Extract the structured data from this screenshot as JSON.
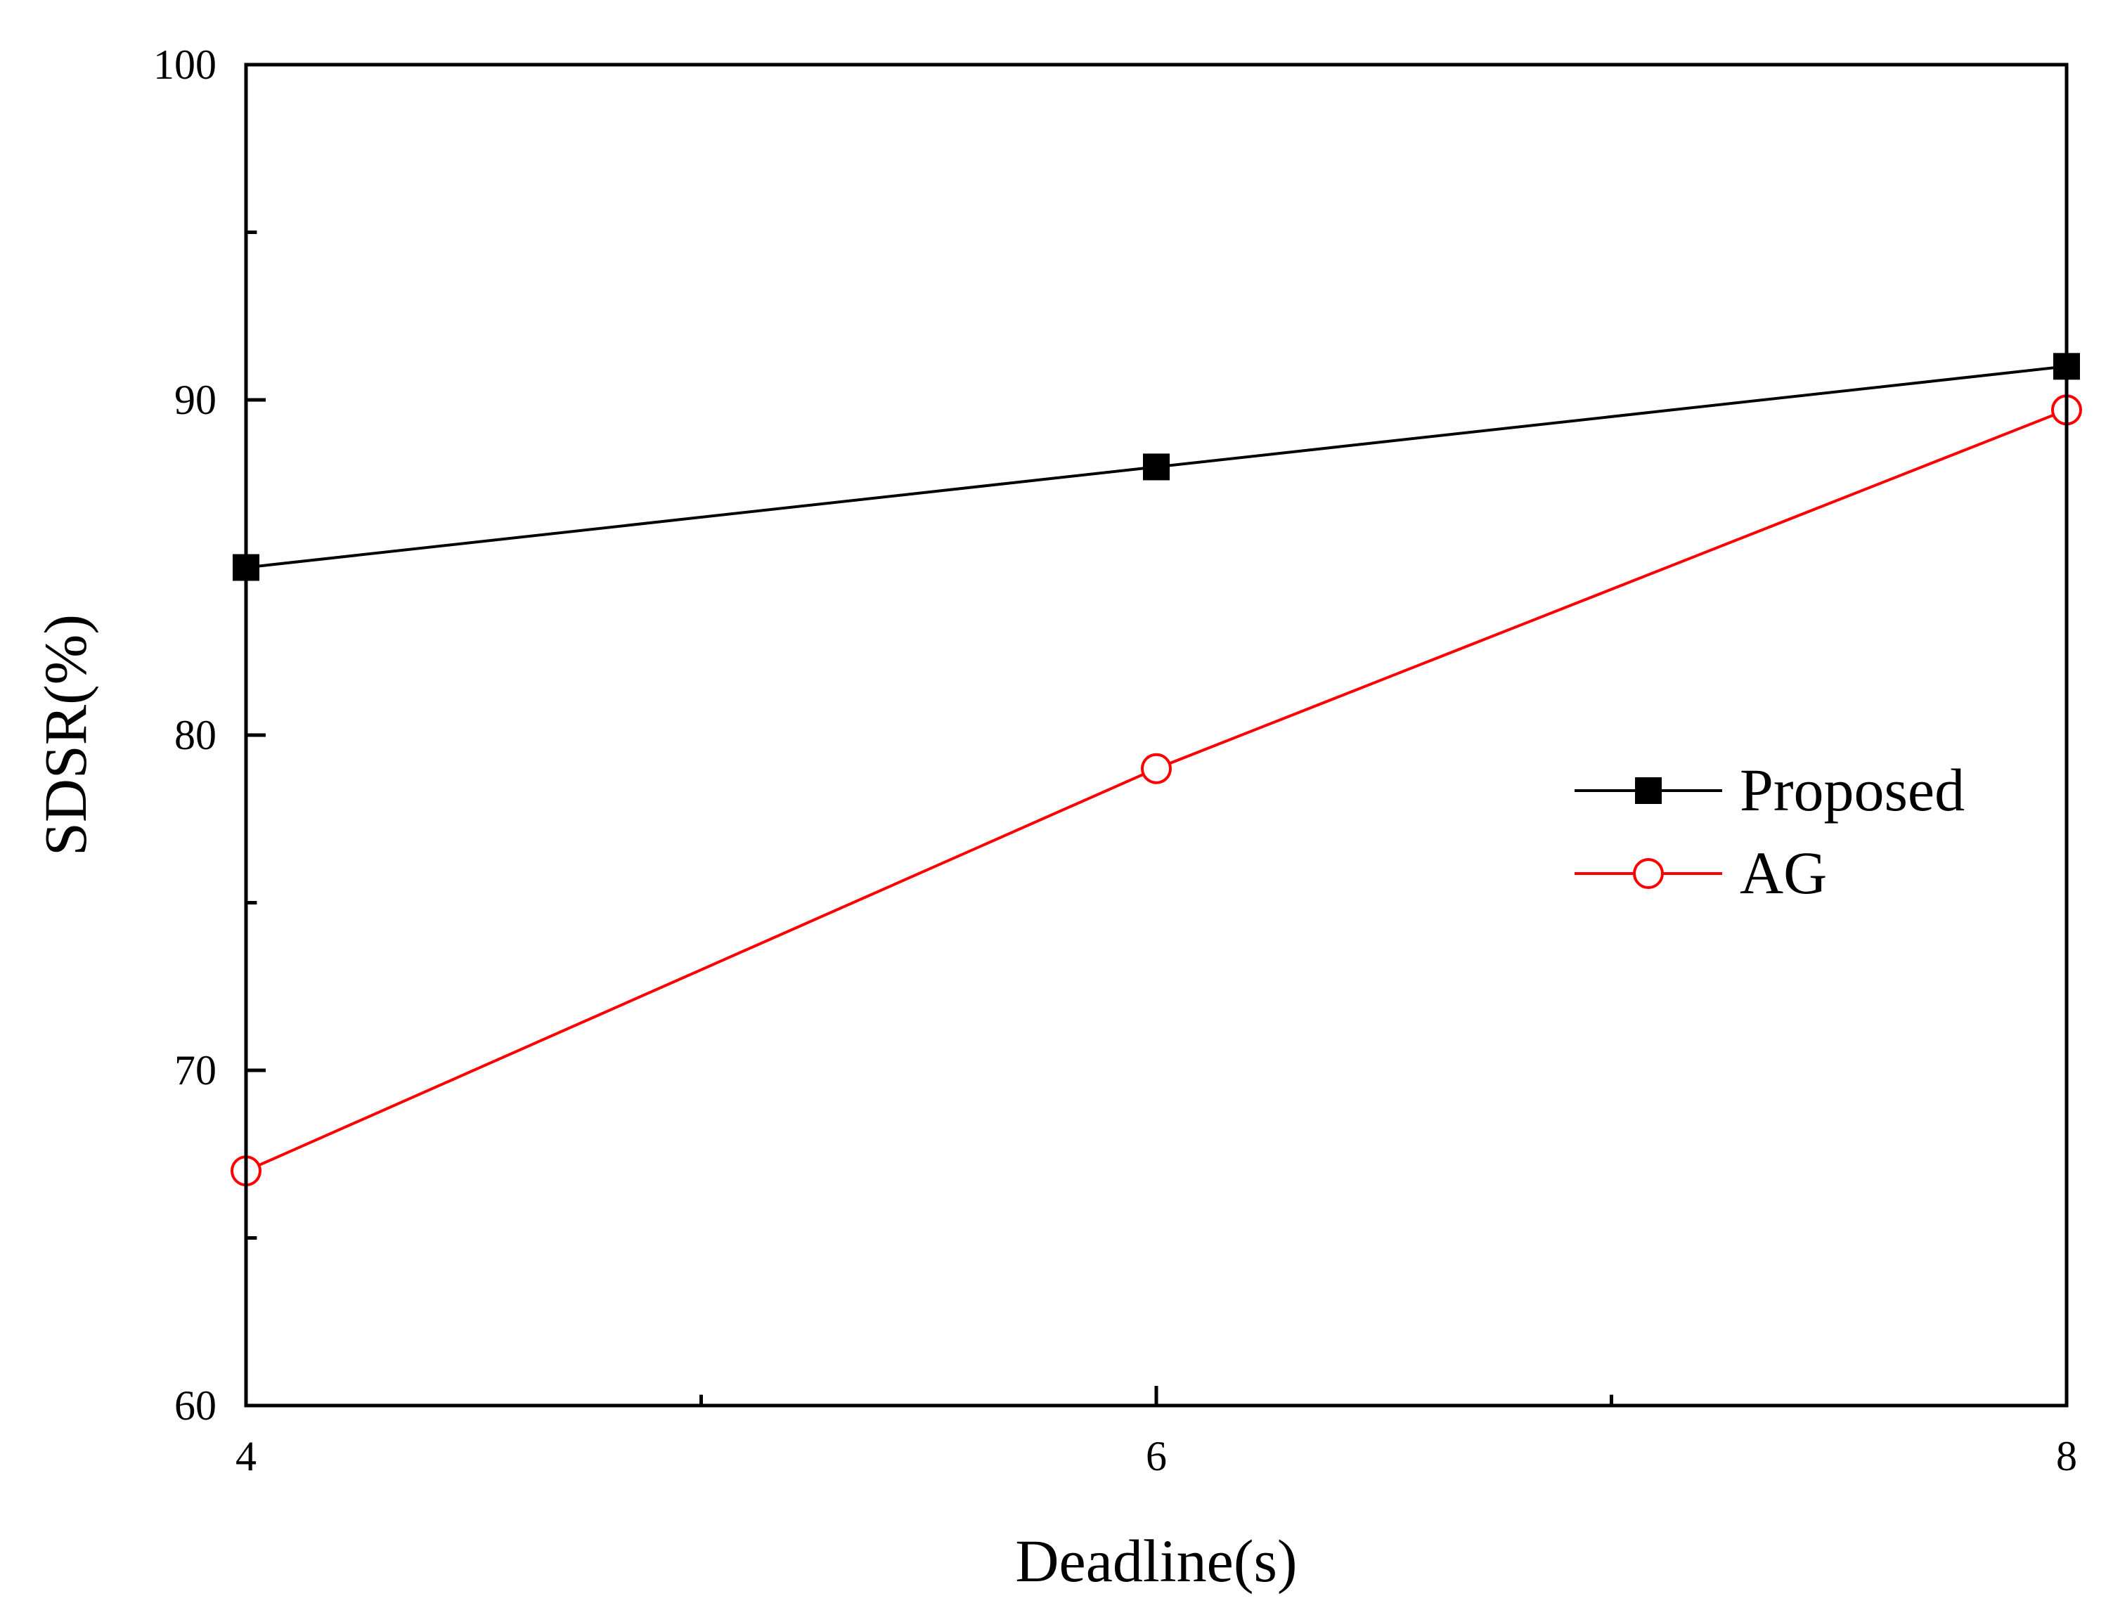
{
  "chart_data": {
    "type": "line",
    "x": [
      4,
      6,
      8
    ],
    "series": [
      {
        "name": "Proposed",
        "values": [
          85,
          88,
          91
        ],
        "color": "#000000",
        "marker": "filled-square"
      },
      {
        "name": "AG",
        "values": [
          67,
          79,
          89.7
        ],
        "color": "#ff0000",
        "marker": "open-circle"
      }
    ],
    "xlabel": "Deadline(s)",
    "ylabel": "SDSR(%)",
    "xlim": [
      4,
      8
    ],
    "ylim": [
      60,
      100
    ],
    "x_ticks": [
      "4",
      "6",
      "8"
    ],
    "y_ticks": [
      "60",
      "70",
      "80",
      "90",
      "100"
    ],
    "grid": false,
    "legend_position": "right"
  }
}
